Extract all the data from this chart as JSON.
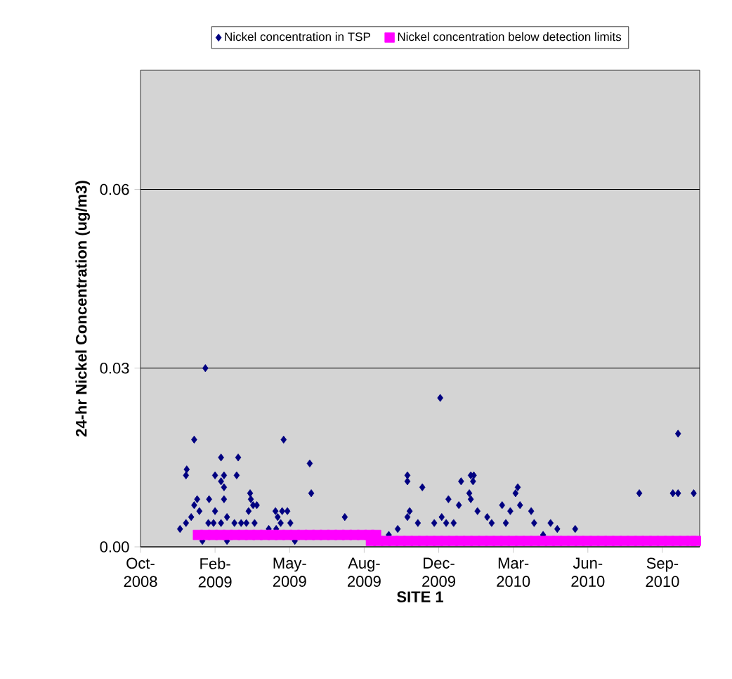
{
  "chart_data": {
    "type": "scatter",
    "xlabel": "SITE 1",
    "ylabel": "24-hr Nickel Concentration (ug/m3)",
    "xlim": [
      "2008-10-29",
      "2010-11-18"
    ],
    "xticks": [
      {
        "value": "2008-10-29",
        "label": "Oct-2008"
      },
      {
        "value": "2009-02-06",
        "label": "Feb-2009"
      },
      {
        "value": "2009-05-17",
        "label": "May-2009"
      },
      {
        "value": "2009-08-25",
        "label": "Aug-2009"
      },
      {
        "value": "2009-12-03",
        "label": "Dec-2009"
      },
      {
        "value": "2010-03-13",
        "label": "Mar-2010"
      },
      {
        "value": "2010-06-21",
        "label": "Jun-2010"
      },
      {
        "value": "2010-09-29",
        "label": "Sep-2010"
      }
    ],
    "ylim": [
      0,
      0.08
    ],
    "yticks": [
      {
        "value": 0,
        "label": "0.00"
      },
      {
        "value": 0.03,
        "label": "0.03"
      },
      {
        "value": 0.06,
        "label": "0.06"
      }
    ],
    "grid": "y",
    "legend": "top",
    "series": [
      {
        "name": "Nickel concentration in TSP",
        "color": "#000080",
        "marker": "diamond",
        "x": [
          "2009-01-24",
          "2009-01-09",
          "2008-12-30",
          "2008-12-29",
          "2009-02-14",
          "2009-03-09",
          "2009-02-06",
          "2009-02-18",
          "2009-02-14",
          "2009-02-18",
          "2009-03-07",
          "2009-02-18",
          "2009-01-29",
          "2009-01-13",
          "2009-01-09",
          "2009-01-16",
          "2009-01-05",
          "2008-12-29",
          "2008-12-21",
          "2009-03-25",
          "2009-03-26",
          "2009-03-29",
          "2009-03-23",
          "2009-04-03",
          "2009-02-06",
          "2009-02-22",
          "2009-01-28",
          "2009-02-04",
          "2009-02-14",
          "2009-03-04",
          "2009-03-13",
          "2009-03-20",
          "2009-03-31",
          "2009-01-20",
          "2009-02-22",
          "2009-05-09",
          "2009-06-13",
          "2009-06-15",
          "2009-04-28",
          "2009-05-01",
          "2009-05-07",
          "2009-05-14",
          "2009-05-05",
          "2009-05-18",
          "2009-04-19",
          "2009-04-29",
          "2009-05-24",
          "2009-07-30",
          "2009-12-05",
          "2010-10-20",
          "2010-08-29",
          "2010-10-13",
          "2010-10-20",
          "2010-11-10",
          "2009-10-22",
          "2009-10-22",
          "2009-11-11",
          "2010-01-19",
          "2010-01-15",
          "2010-01-02",
          "2010-01-18",
          "2010-01-13",
          "2009-12-16",
          "2010-01-15",
          "2009-12-30",
          "2010-01-24",
          "2010-03-19",
          "2010-03-16",
          "2010-02-26",
          "2010-03-22",
          "2010-03-09",
          "2010-04-06",
          "2010-04-10",
          "2009-10-25",
          "2009-10-22",
          "2009-10-09",
          "2009-09-27",
          "2009-11-05",
          "2009-11-27",
          "2009-12-07",
          "2009-12-13",
          "2009-12-23",
          "2010-02-06",
          "2010-02-12",
          "2010-03-03",
          "2010-05-02",
          "2010-05-11",
          "2010-06-04",
          "2010-04-22"
        ],
        "values": [
          0.03,
          0.018,
          0.013,
          0.012,
          0.015,
          0.015,
          0.012,
          0.012,
          0.011,
          0.01,
          0.012,
          0.008,
          0.008,
          0.008,
          0.007,
          0.006,
          0.005,
          0.004,
          0.003,
          0.009,
          0.008,
          0.007,
          0.006,
          0.007,
          0.006,
          0.005,
          0.004,
          0.004,
          0.004,
          0.004,
          0.004,
          0.004,
          0.004,
          0.001,
          0.001,
          0.018,
          0.014,
          0.009,
          0.006,
          0.005,
          0.006,
          0.006,
          0.004,
          0.004,
          0.003,
          0.003,
          0.001,
          0.005,
          0.025,
          0.019,
          0.009,
          0.009,
          0.009,
          0.009,
          0.012,
          0.011,
          0.01,
          0.012,
          0.012,
          0.011,
          0.011,
          0.009,
          0.008,
          0.008,
          0.007,
          0.006,
          0.01,
          0.009,
          0.007,
          0.007,
          0.006,
          0.006,
          0.004,
          0.006,
          0.005,
          0.003,
          0.002,
          0.004,
          0.004,
          0.005,
          0.004,
          0.004,
          0.005,
          0.004,
          0.004,
          0.004,
          0.003,
          0.003,
          0.002
        ]
      },
      {
        "name": "Nickel concentration below detection limits",
        "color": "#ff00ff",
        "marker": "square",
        "x": [
          "2009-01-14",
          "2009-01-24",
          "2009-02-03",
          "2009-02-13",
          "2009-02-23",
          "2009-03-05",
          "2009-03-15",
          "2009-03-25",
          "2009-04-04",
          "2009-04-14",
          "2009-04-24",
          "2009-05-04",
          "2009-05-14",
          "2009-05-24",
          "2009-06-03",
          "2009-06-13",
          "2009-06-23",
          "2009-07-03",
          "2009-07-13",
          "2009-07-23",
          "2009-08-02",
          "2009-08-12",
          "2009-08-22",
          "2009-09-01",
          "2009-09-10",
          "2009-09-03",
          "2009-09-13",
          "2009-09-23",
          "2009-10-03",
          "2009-10-13",
          "2009-10-23",
          "2009-11-02",
          "2009-11-12",
          "2009-11-22",
          "2009-12-02",
          "2009-12-12",
          "2009-12-22",
          "2010-01-01",
          "2010-01-11",
          "2010-01-21",
          "2010-01-31",
          "2010-02-10",
          "2010-02-20",
          "2010-03-02",
          "2010-03-12",
          "2010-03-22",
          "2010-04-01",
          "2010-04-11",
          "2010-04-21",
          "2010-05-01",
          "2010-05-11",
          "2010-05-21",
          "2010-05-31",
          "2010-06-10",
          "2010-06-20",
          "2010-06-30",
          "2010-07-10",
          "2010-07-20",
          "2010-07-30",
          "2010-08-09",
          "2010-08-19",
          "2010-08-29",
          "2010-09-08",
          "2010-09-18",
          "2010-09-28",
          "2010-10-08",
          "2010-10-18",
          "2010-10-28",
          "2010-11-07",
          "2010-11-13"
        ],
        "values": [
          0.002,
          0.002,
          0.002,
          0.002,
          0.002,
          0.002,
          0.002,
          0.002,
          0.002,
          0.002,
          0.002,
          0.002,
          0.002,
          0.002,
          0.002,
          0.002,
          0.002,
          0.002,
          0.002,
          0.002,
          0.002,
          0.002,
          0.002,
          0.002,
          0.002,
          0.001,
          0.001,
          0.001,
          0.001,
          0.001,
          0.001,
          0.001,
          0.001,
          0.001,
          0.001,
          0.001,
          0.001,
          0.001,
          0.001,
          0.001,
          0.001,
          0.001,
          0.001,
          0.001,
          0.001,
          0.001,
          0.001,
          0.001,
          0.001,
          0.001,
          0.001,
          0.001,
          0.001,
          0.001,
          0.001,
          0.001,
          0.001,
          0.001,
          0.001,
          0.001,
          0.001,
          0.001,
          0.001,
          0.001,
          0.001,
          0.001,
          0.001,
          0.001,
          0.001,
          0.001
        ]
      }
    ]
  }
}
